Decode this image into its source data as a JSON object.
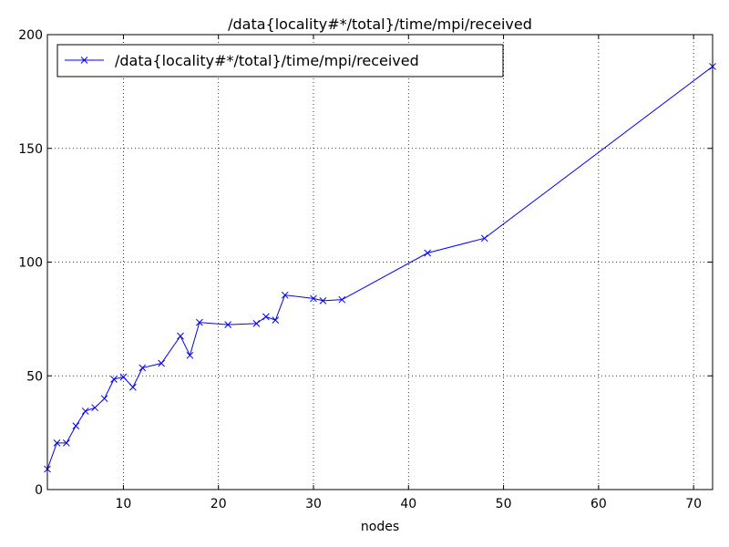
{
  "chart_data": {
    "type": "line",
    "title": "/data{locality#*/total}/time/mpi/received",
    "xlabel": "nodes",
    "ylabel": "",
    "xlim": [
      2,
      72
    ],
    "ylim": [
      0,
      200
    ],
    "x_ticks": [
      10,
      20,
      30,
      40,
      50,
      60,
      70
    ],
    "y_ticks": [
      0,
      50,
      100,
      150,
      200
    ],
    "grid": true,
    "legend_position": "top-left",
    "series": [
      {
        "name": "/data{locality#*/total}/time/mpi/received",
        "color": "#0000ff",
        "marker": "x",
        "x": [
          2,
          3,
          4,
          5,
          6,
          7,
          8,
          9,
          10,
          11,
          12,
          14,
          16,
          17,
          18,
          21,
          24,
          25,
          26,
          27,
          30,
          31,
          33,
          42,
          48,
          72
        ],
        "y": [
          9,
          20.5,
          20.5,
          28,
          34.5,
          36,
          40,
          48.5,
          49.5,
          45,
          53.5,
          55.5,
          67.5,
          59,
          73.5,
          72.5,
          73,
          76,
          74.5,
          85.5,
          84,
          83,
          83.5,
          104,
          110.5,
          186
        ]
      }
    ]
  }
}
